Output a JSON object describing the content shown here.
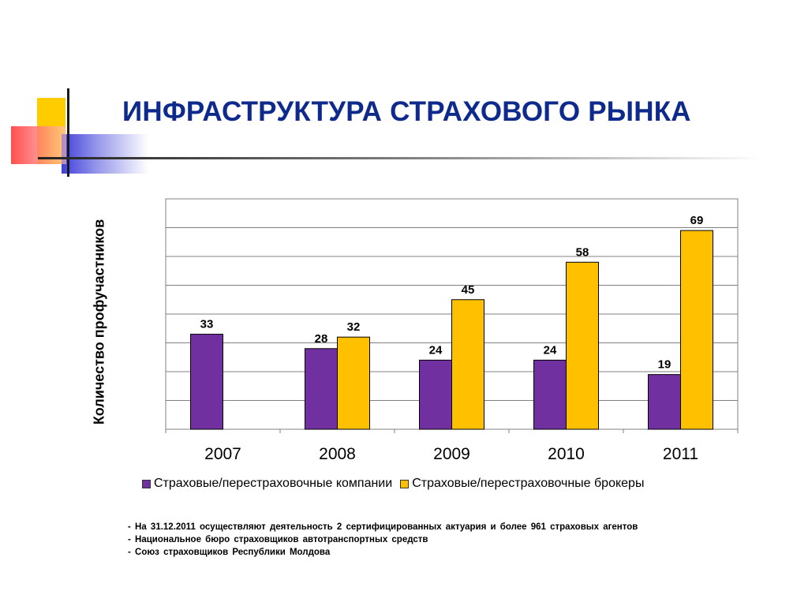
{
  "title": "ИНФРАСТРУКТУРА СТРАХОВОГО РЫНКА",
  "chart_data": {
    "type": "bar",
    "ylabel": "Количество профучастников",
    "xlabel": "",
    "categories": [
      "2007",
      "2008",
      "2009",
      "2010",
      "2011"
    ],
    "series": [
      {
        "name": "Страховые/перестраховочные компании",
        "values": [
          33,
          28,
          24,
          24,
          19
        ],
        "color": "#7030a0"
      },
      {
        "name": "Страховые/перестраховочные брокеры",
        "values": [
          null,
          32,
          45,
          58,
          69
        ],
        "color": "#ffc000"
      }
    ],
    "ylim": [
      0,
      80
    ],
    "grid": true,
    "legend_position": "bottom"
  },
  "footnotes": [
    "- На 31.12.2011 осуществляют деятельность 2 сертифицированных актуария и более 961 страховых агентов",
    "- Национальное бюро страховщиков автотранспортных средств",
    "- Союз страховщиков Республики Молдова"
  ]
}
